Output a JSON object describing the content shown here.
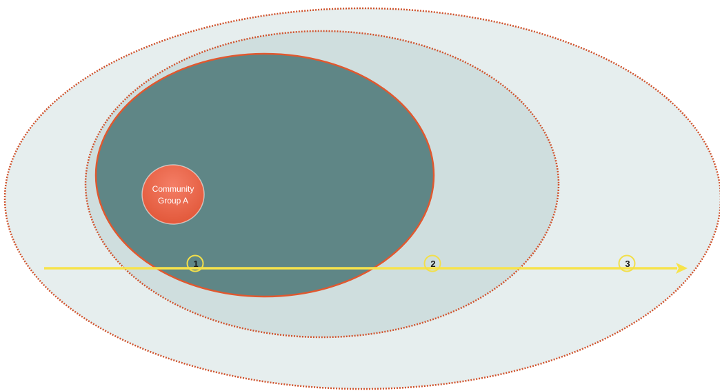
{
  "colors": {
    "background": "#ffffff",
    "outer_ring_fill": "#e6eeee",
    "middle_ring_fill": "#cfdede",
    "ring_dotted_stroke": "#d0532d",
    "core_fill": "#5f8686",
    "core_stroke": "#e0582f",
    "group_fill_top": "#f47e66",
    "group_fill_bottom": "#e2583a",
    "arrow": "#f7e34b",
    "marker_stroke": "#f2df4a",
    "marker_text": "#1a1a1a"
  },
  "group": {
    "line1": "Community",
    "line2": "Group A",
    "icon": "community-group-bubble"
  },
  "markers": [
    {
      "label": "1"
    },
    {
      "label": "2"
    },
    {
      "label": "3"
    }
  ],
  "arrow": {
    "icon": "arrow-right-icon"
  }
}
